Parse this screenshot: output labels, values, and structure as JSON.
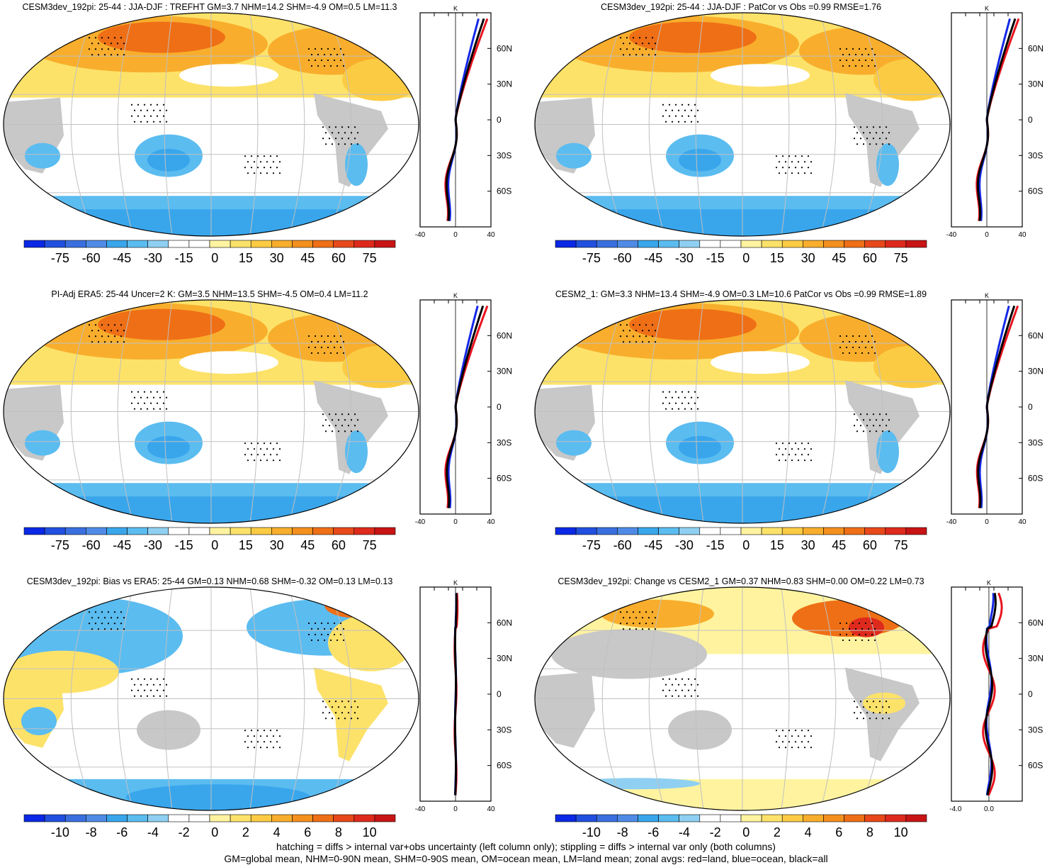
{
  "chart_data": [
    {
      "type": "map",
      "title": "CESM3dev_192pi: 25-44 : JJA-DJF : TREFHT GM=3.7 NHM=14.2 SHM=-4.9 OM=0.5 LM=11.3",
      "colorbar_labels": [
        "-75",
        "-60",
        "-45",
        "-30",
        "-15",
        "0",
        "15",
        "30",
        "45",
        "60",
        "75"
      ],
      "zonal_xticks": [
        "-40",
        "0",
        "40"
      ],
      "zonal_units": "K",
      "zonal_xlim": [
        -40,
        40
      ],
      "pattern": "warm",
      "profile_amp": {
        "all": 32,
        "land": 36,
        "ocean": 26
      }
    },
    {
      "type": "map",
      "title": "CESM3dev_192pi: 25-44 : JJA-DJF : PatCor vs Obs =0.99 RMSE=1.76",
      "colorbar_labels": [
        "-75",
        "-60",
        "-45",
        "-30",
        "-15",
        "0",
        "15",
        "30",
        "45",
        "60",
        "75"
      ],
      "zonal_xticks": [
        "-40",
        "0",
        "40"
      ],
      "zonal_units": "K",
      "zonal_xlim": [
        -40,
        40
      ],
      "pattern": "warm",
      "profile_amp": {
        "all": 32,
        "land": 36,
        "ocean": 26
      }
    },
    {
      "type": "map",
      "title": "PI-Adj ERA5: 25-44 Uncer=2 K: GM=3.5 NHM=13.5 SHM=-4.5 OM=0.4 LM=11.2",
      "colorbar_labels": [
        "-75",
        "-60",
        "-45",
        "-30",
        "-15",
        "0",
        "15",
        "30",
        "45",
        "60",
        "75"
      ],
      "zonal_xticks": [
        "-40",
        "0",
        "40"
      ],
      "zonal_units": "K",
      "zonal_xlim": [
        -40,
        40
      ],
      "pattern": "warm",
      "profile_amp": {
        "all": 31,
        "land": 36,
        "ocean": 25
      }
    },
    {
      "type": "map",
      "title": "CESM2_1: GM=3.3 NHM=13.4 SHM=-4.9 OM=0.3 LM=10.6 PatCor vs Obs =0.99 RMSE=1.89",
      "colorbar_labels": [
        "-75",
        "-60",
        "-45",
        "-30",
        "-15",
        "0",
        "15",
        "30",
        "45",
        "60",
        "75"
      ],
      "zonal_xticks": [
        "-40",
        "0",
        "40"
      ],
      "zonal_units": "K",
      "zonal_xlim": [
        -40,
        40
      ],
      "pattern": "warm",
      "profile_amp": {
        "all": 31,
        "land": 35,
        "ocean": 25
      }
    },
    {
      "type": "map",
      "title": "CESM3dev_192pi: Bias vs ERA5: 25-44 GM=0.13 NHM=0.68 SHM=-0.32 OM=0.13 LM=0.13",
      "colorbar_labels": [
        "-10",
        "-8",
        "-6",
        "-4",
        "-2",
        "0",
        "2",
        "4",
        "6",
        "8",
        "10"
      ],
      "zonal_xticks": [
        "-40",
        "0",
        "40"
      ],
      "zonal_units": "K",
      "zonal_xlim": [
        -40,
        40
      ],
      "pattern": "bias",
      "profile_amp": {
        "all": 1,
        "land": 2,
        "ocean": 1
      }
    },
    {
      "type": "map",
      "title": "CESM3dev_192pi: Change vs CESM2_1 GM=0.37 NHM=0.83 SHM=0.00 OM=0.22 LM=0.73",
      "colorbar_labels": [
        "-10",
        "-8",
        "-6",
        "-4",
        "-2",
        "0",
        "2",
        "4",
        "6",
        "8",
        "10"
      ],
      "zonal_xticks": [
        "-4.0",
        "0.0"
      ],
      "zonal_units": "K",
      "zonal_xlim": [
        -4.5,
        4.0
      ],
      "pattern": "change",
      "profile_amp": {
        "all": 0.8,
        "land": 1.4,
        "ocean": 0.6
      }
    }
  ],
  "latitude_labels": [
    "60N",
    "30N",
    "0",
    "30S",
    "60S"
  ],
  "colorbar_colors": [
    "#0a28e6",
    "#2150e0",
    "#3a6fe0",
    "#4f8be6",
    "#39a6ec",
    "#5bbcf0",
    "#8fd0f2",
    "#ffffff",
    "#ffffff",
    "#fff3a0",
    "#fde26a",
    "#fbcb44",
    "#f8ae2c",
    "#f4901e",
    "#ef6f16",
    "#e8481a",
    "#de2a1c",
    "#c81414"
  ],
  "land_color": "#c8c8c8",
  "legend_lines": {
    "land": "#e8141e",
    "ocean": "#1428e6",
    "all": "#000000"
  },
  "caption": {
    "line1": "hatching = diffs > internal var+obs uncertainty (left column only); stippling = diffs > internal var only (both columns)",
    "line2": "GM=global mean, NHM=0-90N mean, SHM=0-90S mean, OM=ocean mean, LM=land mean; zonal avgs: red=land, blue=ocean, black=all"
  }
}
